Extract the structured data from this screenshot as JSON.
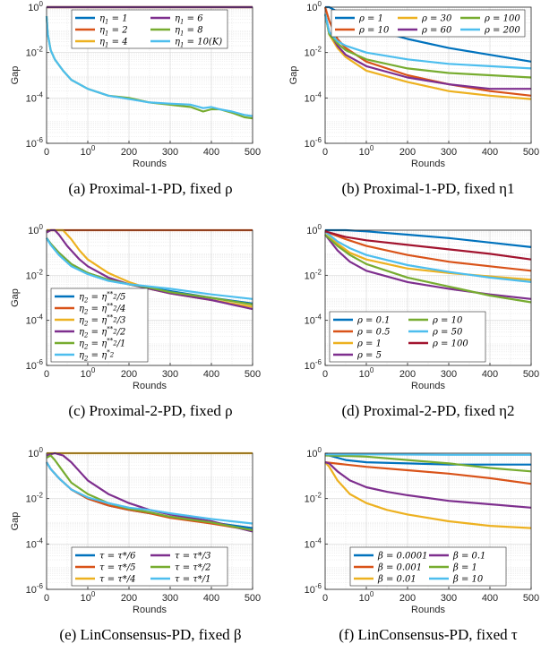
{
  "chart_data": [
    {
      "id": "a",
      "type": "line",
      "caption": "(a) Proximal-1-PD, fixed ρ",
      "xlabel": "Rounds",
      "ylabel": "Gap",
      "xlim": [
        0,
        500
      ],
      "ylim_log10": [
        -6,
        0
      ],
      "yscale": "log",
      "grid": true,
      "xticks": [
        "0",
        "100",
        "200",
        "300",
        "400",
        "500"
      ],
      "yticks": [
        "10-6",
        "10-4",
        "10-2",
        "100"
      ],
      "legend": {
        "placement": "top",
        "columns": 2
      },
      "series": [
        {
          "name": "η1 = 1",
          "color": "#0072BD",
          "x": [
            0,
            10,
            500
          ],
          "log10y": [
            0,
            0,
            0
          ]
        },
        {
          "name": "η1 = 2",
          "color": "#D95319",
          "x": [
            0,
            10,
            500
          ],
          "log10y": [
            0,
            0,
            0
          ]
        },
        {
          "name": "η1 = 4",
          "color": "#EDB120",
          "x": [
            0,
            10,
            500
          ],
          "log10y": [
            0,
            0,
            0
          ]
        },
        {
          "name": "η1 = 6",
          "color": "#7E2F8E",
          "x": [
            0,
            10,
            500
          ],
          "log10y": [
            0,
            0,
            0
          ]
        },
        {
          "name": "η1 = 8",
          "color": "#77AC30",
          "x": [
            0,
            3,
            10,
            20,
            40,
            60,
            100,
            150,
            200,
            250,
            300,
            350,
            380,
            400,
            420,
            450,
            480,
            500
          ],
          "log10y": [
            -0.4,
            -1.2,
            -1.9,
            -2.3,
            -2.8,
            -3.2,
            -3.6,
            -3.9,
            -4.0,
            -4.2,
            -4.3,
            -4.4,
            -4.6,
            -4.5,
            -4.5,
            -4.65,
            -4.85,
            -4.9
          ]
        },
        {
          "name": "η1 = 10(K)",
          "color": "#4DBEEE",
          "x": [
            0,
            3,
            10,
            20,
            40,
            60,
            100,
            150,
            200,
            250,
            300,
            350,
            380,
            400,
            420,
            450,
            480,
            500
          ],
          "log10y": [
            -0.4,
            -1.2,
            -1.9,
            -2.3,
            -2.8,
            -3.2,
            -3.6,
            -3.9,
            -4.05,
            -4.2,
            -4.25,
            -4.3,
            -4.45,
            -4.4,
            -4.5,
            -4.6,
            -4.75,
            -4.8
          ]
        }
      ]
    },
    {
      "id": "b",
      "type": "line",
      "caption": "(b) Proximal-1-PD, fixed η1",
      "xlabel": "Rounds",
      "ylabel": "Gap",
      "xlim": [
        0,
        500
      ],
      "ylim_log10": [
        -6,
        0
      ],
      "yscale": "log",
      "grid": true,
      "xticks": [
        "0",
        "100",
        "200",
        "300",
        "400",
        "500"
      ],
      "yticks": [
        "10-6",
        "10-4",
        "10-2",
        "100"
      ],
      "legend": {
        "placement": "top",
        "columns": 3
      },
      "series": [
        {
          "name": "ρ = 1",
          "color": "#0072BD",
          "x": [
            0,
            10,
            30,
            50,
            100,
            200,
            300,
            400,
            500
          ],
          "log10y": [
            0,
            0,
            -0.2,
            -0.5,
            -0.9,
            -1.4,
            -1.8,
            -2.1,
            -2.4
          ]
        },
        {
          "name": "ρ = 10",
          "color": "#D95319",
          "x": [
            0,
            10,
            30,
            50,
            100,
            200,
            300,
            400,
            500
          ],
          "log10y": [
            0,
            -0.6,
            -1.4,
            -1.8,
            -2.4,
            -3.0,
            -3.4,
            -3.7,
            -3.9
          ]
        },
        {
          "name": "ρ = 30",
          "color": "#EDB120",
          "x": [
            0,
            10,
            30,
            50,
            100,
            200,
            300,
            400,
            500
          ],
          "log10y": [
            -0.3,
            -1.2,
            -1.8,
            -2.2,
            -2.8,
            -3.3,
            -3.7,
            -3.9,
            -4.05
          ]
        },
        {
          "name": "ρ = 60",
          "color": "#7E2F8E",
          "x": [
            0,
            10,
            30,
            50,
            100,
            200,
            300,
            400,
            500
          ],
          "log10y": [
            -0.3,
            -1.1,
            -1.7,
            -2.1,
            -2.6,
            -3.1,
            -3.4,
            -3.6,
            -3.6
          ]
        },
        {
          "name": "ρ = 100",
          "color": "#77AC30",
          "x": [
            0,
            10,
            30,
            50,
            100,
            200,
            300,
            400,
            500
          ],
          "log10y": [
            -0.3,
            -1.2,
            -1.6,
            -1.9,
            -2.3,
            -2.7,
            -2.9,
            -3.0,
            -3.1
          ]
        },
        {
          "name": "ρ = 200",
          "color": "#4DBEEE",
          "x": [
            0,
            10,
            30,
            50,
            100,
            200,
            300,
            400,
            500
          ],
          "log10y": [
            -0.3,
            -1.1,
            -1.5,
            -1.7,
            -2.0,
            -2.3,
            -2.5,
            -2.6,
            -2.7
          ]
        }
      ]
    },
    {
      "id": "c",
      "type": "line",
      "caption": "(c) Proximal-2-PD, fixed ρ",
      "xlabel": "Rounds",
      "ylabel": "Gap",
      "xlim": [
        0,
        500
      ],
      "ylim_log10": [
        -6,
        0
      ],
      "yscale": "log",
      "grid": true,
      "xticks": [
        "0",
        "100",
        "200",
        "300",
        "400",
        "500"
      ],
      "yticks": [
        "10-6",
        "10-4",
        "10-2",
        "100"
      ],
      "legend": {
        "placement": "lower-left",
        "columns": 1
      },
      "series": [
        {
          "name": "η2 = η2**/5",
          "color": "#0072BD",
          "x": [
            0,
            10,
            30,
            60,
            100,
            150,
            200,
            250,
            300,
            400,
            500
          ],
          "log10y": [
            -0.35,
            -0.6,
            -1.0,
            -1.5,
            -1.9,
            -2.2,
            -2.4,
            -2.55,
            -2.7,
            -3.0,
            -3.25
          ]
        },
        {
          "name": "η2 = η2**/4",
          "color": "#D95319",
          "x": [
            0,
            500
          ],
          "log10y": [
            0,
            0
          ]
        },
        {
          "name": "η2 = η2**/3",
          "color": "#EDB120",
          "x": [
            0,
            40,
            60,
            80,
            100,
            150,
            200,
            250,
            300,
            400,
            500
          ],
          "log10y": [
            0,
            0,
            -0.4,
            -0.9,
            -1.3,
            -1.9,
            -2.3,
            -2.6,
            -2.8,
            -3.1,
            -3.4
          ]
        },
        {
          "name": "η2 = η2**/2",
          "color": "#7E2F8E",
          "x": [
            0,
            10,
            20,
            30,
            50,
            80,
            100,
            150,
            200,
            250,
            300,
            400,
            500
          ],
          "log10y": [
            -0.1,
            0,
            0,
            -0.2,
            -0.7,
            -1.3,
            -1.6,
            -2.1,
            -2.4,
            -2.6,
            -2.8,
            -3.1,
            -3.5
          ]
        },
        {
          "name": "η2 = η2**/1",
          "color": "#77AC30",
          "x": [
            0,
            10,
            30,
            60,
            100,
            150,
            200,
            250,
            300,
            400,
            500
          ],
          "log10y": [
            -0.35,
            -0.6,
            -1.0,
            -1.5,
            -1.9,
            -2.2,
            -2.4,
            -2.55,
            -2.75,
            -3.0,
            -3.3
          ]
        },
        {
          "name": "η2 = η2*",
          "color": "#4DBEEE",
          "x": [
            0,
            10,
            30,
            60,
            100,
            150,
            200,
            250,
            300,
            400,
            500
          ],
          "log10y": [
            -0.35,
            -0.65,
            -1.1,
            -1.6,
            -1.95,
            -2.25,
            -2.4,
            -2.5,
            -2.6,
            -2.85,
            -3.05
          ]
        }
      ]
    },
    {
      "id": "d",
      "type": "line",
      "caption": "(d) Proximal-2-PD, fixed η2",
      "xlabel": "Rounds",
      "ylabel": "",
      "xlim": [
        0,
        500
      ],
      "ylim_log10": [
        -6,
        0
      ],
      "yscale": "log",
      "grid": true,
      "xticks": [
        "0",
        "100",
        "200",
        "300",
        "400",
        "500"
      ],
      "yticks": [
        "10-6",
        "10-4",
        "10-2",
        "100"
      ],
      "legend": {
        "placement": "lower-left",
        "columns": 2
      },
      "series": [
        {
          "name": "ρ = 0.1",
          "color": "#0072BD",
          "x": [
            0,
            50,
            100,
            200,
            300,
            400,
            500
          ],
          "log10y": [
            0,
            0,
            -0.05,
            -0.2,
            -0.35,
            -0.55,
            -0.75
          ]
        },
        {
          "name": "ρ = 0.5",
          "color": "#D95319",
          "x": [
            0,
            50,
            100,
            200,
            300,
            400,
            500
          ],
          "log10y": [
            -0.05,
            -0.4,
            -0.7,
            -1.1,
            -1.4,
            -1.6,
            -1.8
          ]
        },
        {
          "name": "ρ = 1",
          "color": "#EDB120",
          "x": [
            0,
            30,
            60,
            100,
            200,
            300,
            400,
            500
          ],
          "log10y": [
            -0.05,
            -0.6,
            -1.0,
            -1.3,
            -1.7,
            -1.9,
            -2.05,
            -2.2
          ]
        },
        {
          "name": "ρ = 5",
          "color": "#7E2F8E",
          "x": [
            0,
            30,
            60,
            100,
            200,
            300,
            400,
            500
          ],
          "log10y": [
            -0.2,
            -0.9,
            -1.4,
            -1.8,
            -2.3,
            -2.6,
            -2.85,
            -3.05
          ]
        },
        {
          "name": "ρ = 10",
          "color": "#77AC30",
          "x": [
            0,
            30,
            60,
            100,
            200,
            300,
            400,
            500
          ],
          "log10y": [
            -0.2,
            -0.7,
            -1.1,
            -1.5,
            -2.1,
            -2.5,
            -2.9,
            -3.2
          ]
        },
        {
          "name": "ρ = 50",
          "color": "#4DBEEE",
          "x": [
            0,
            30,
            60,
            100,
            200,
            300,
            400,
            500
          ],
          "log10y": [
            -0.05,
            -0.5,
            -0.8,
            -1.1,
            -1.55,
            -1.85,
            -2.1,
            -2.3
          ]
        },
        {
          "name": "ρ = 100",
          "color": "#A2142F",
          "x": [
            0,
            50,
            100,
            200,
            300,
            400,
            500
          ],
          "log10y": [
            -0.05,
            -0.3,
            -0.45,
            -0.65,
            -0.85,
            -1.05,
            -1.3
          ]
        }
      ]
    },
    {
      "id": "e",
      "type": "line",
      "caption": "(e) LinConsensus-PD, fixed β",
      "xlabel": "Rounds",
      "ylabel": "Gap",
      "xlim": [
        0,
        500
      ],
      "ylim_log10": [
        -6,
        0
      ],
      "yscale": "log",
      "grid": true,
      "xticks": [
        "0",
        "100",
        "200",
        "300",
        "400",
        "500"
      ],
      "yticks": [
        "10-6",
        "10-4",
        "10-2",
        "100"
      ],
      "legend": {
        "placement": "bottom",
        "columns": 2
      },
      "series": [
        {
          "name": "τ = τ*/6",
          "color": "#0072BD",
          "x": [
            0,
            10,
            30,
            60,
            100,
            150,
            200,
            250,
            300,
            400,
            500
          ],
          "log10y": [
            -0.4,
            -0.7,
            -1.1,
            -1.6,
            -2.0,
            -2.3,
            -2.5,
            -2.65,
            -2.8,
            -3.05,
            -3.3
          ]
        },
        {
          "name": "τ = τ*/5",
          "color": "#D95319",
          "x": [
            0,
            10,
            30,
            60,
            100,
            150,
            200,
            250,
            300,
            400,
            500
          ],
          "log10y": [
            -0.4,
            -0.7,
            -1.1,
            -1.6,
            -2.0,
            -2.3,
            -2.5,
            -2.65,
            -2.85,
            -3.1,
            -3.4
          ]
        },
        {
          "name": "τ = τ*/4",
          "color": "#EDB120",
          "x": [
            0,
            500
          ],
          "log10y": [
            0,
            0
          ]
        },
        {
          "name": "τ = τ*/3",
          "color": "#7E2F8E",
          "x": [
            0,
            20,
            40,
            60,
            80,
            100,
            150,
            200,
            250,
            300,
            400,
            500
          ],
          "log10y": [
            -0.1,
            0,
            -0.1,
            -0.4,
            -0.8,
            -1.2,
            -1.8,
            -2.2,
            -2.5,
            -2.7,
            -3.0,
            -3.45
          ]
        },
        {
          "name": "τ = τ*/2",
          "color": "#77AC30",
          "x": [
            0,
            10,
            20,
            40,
            60,
            100,
            150,
            200,
            250,
            300,
            400,
            500
          ],
          "log10y": [
            -0.2,
            -0.1,
            -0.3,
            -0.8,
            -1.3,
            -1.8,
            -2.2,
            -2.45,
            -2.6,
            -2.8,
            -3.05,
            -3.4
          ]
        },
        {
          "name": "τ = τ*/1",
          "color": "#4DBEEE",
          "x": [
            0,
            10,
            30,
            60,
            100,
            150,
            200,
            250,
            300,
            400,
            500
          ],
          "log10y": [
            -0.4,
            -0.7,
            -1.1,
            -1.6,
            -1.95,
            -2.2,
            -2.4,
            -2.5,
            -2.65,
            -2.9,
            -3.1
          ]
        }
      ]
    },
    {
      "id": "f",
      "type": "line",
      "caption": "(f) LinConsensus-PD, fixed τ",
      "xlabel": "Rounds",
      "ylabel": "",
      "xlim": [
        0,
        500
      ],
      "ylim_log10": [
        -6,
        0
      ],
      "yscale": "log",
      "grid": true,
      "xticks": [
        "0",
        "100",
        "200",
        "300",
        "400",
        "500"
      ],
      "yticks": [
        "10-6",
        "10-4",
        "10-2",
        "100"
      ],
      "legend": {
        "placement": "bottom",
        "columns": 2
      },
      "series": [
        {
          "name": "β = 0.0001",
          "color": "#0072BD",
          "x": [
            0,
            50,
            100,
            200,
            300,
            400,
            500
          ],
          "log10y": [
            -0.05,
            -0.3,
            -0.4,
            -0.45,
            -0.5,
            -0.5,
            -0.5
          ]
        },
        {
          "name": "β = 0.001",
          "color": "#D95319",
          "x": [
            0,
            50,
            100,
            200,
            300,
            400,
            500
          ],
          "log10y": [
            -0.4,
            -0.5,
            -0.6,
            -0.75,
            -0.9,
            -1.1,
            -1.35
          ]
        },
        {
          "name": "β = 0.01",
          "color": "#EDB120",
          "x": [
            0,
            10,
            30,
            60,
            100,
            150,
            200,
            300,
            400,
            500
          ],
          "log10y": [
            -0.4,
            -0.6,
            -1.2,
            -1.8,
            -2.2,
            -2.5,
            -2.7,
            -3.0,
            -3.2,
            -3.3
          ]
        },
        {
          "name": "β = 0.1",
          "color": "#7E2F8E",
          "x": [
            0,
            10,
            30,
            60,
            100,
            150,
            200,
            300,
            400,
            500
          ],
          "log10y": [
            -0.4,
            -0.45,
            -0.8,
            -1.2,
            -1.5,
            -1.7,
            -1.85,
            -2.1,
            -2.25,
            -2.4
          ]
        },
        {
          "name": "β = 1",
          "color": "#77AC30",
          "x": [
            0,
            50,
            100,
            200,
            300,
            400,
            500
          ],
          "log10y": [
            -0.1,
            -0.12,
            -0.15,
            -0.3,
            -0.45,
            -0.65,
            -0.8
          ]
        },
        {
          "name": "β = 10",
          "color": "#4DBEEE",
          "x": [
            0,
            50,
            100,
            200,
            300,
            400,
            500
          ],
          "log10y": [
            -0.05,
            -0.05,
            -0.05,
            -0.06,
            -0.07,
            -0.07,
            -0.07
          ]
        }
      ]
    }
  ]
}
